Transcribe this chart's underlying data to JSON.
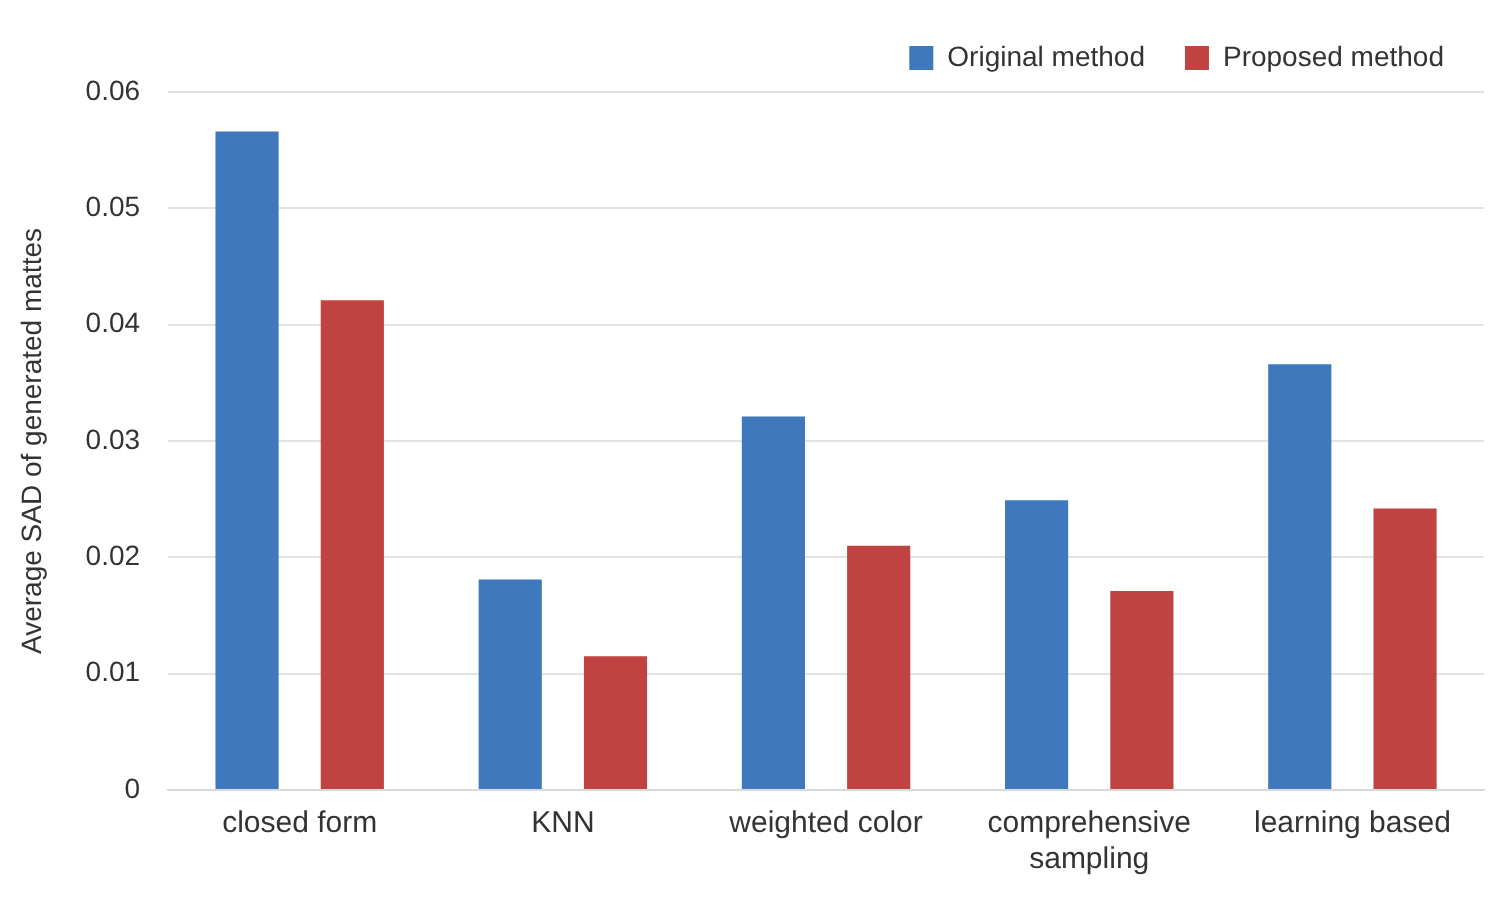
{
  "chart_data": {
    "type": "bar",
    "ylabel": "Average SAD of generated mattes",
    "categories": [
      "closed form",
      "KNN",
      "weighted color",
      "comprehensive sampling",
      "learning based"
    ],
    "series": [
      {
        "name": "Original method",
        "color": "#3f78bd",
        "values": [
          0.0566,
          0.0181,
          0.0321,
          0.0249,
          0.0366
        ]
      },
      {
        "name": "Proposed method",
        "color": "#bf4340",
        "values": [
          0.0421,
          0.0115,
          0.021,
          0.0171,
          0.0242
        ]
      }
    ],
    "ylim": [
      0,
      0.06
    ],
    "yticks": [
      0,
      0.01,
      0.02,
      0.03,
      0.04,
      0.05,
      0.06
    ],
    "grid": "y",
    "legend": "top right"
  }
}
